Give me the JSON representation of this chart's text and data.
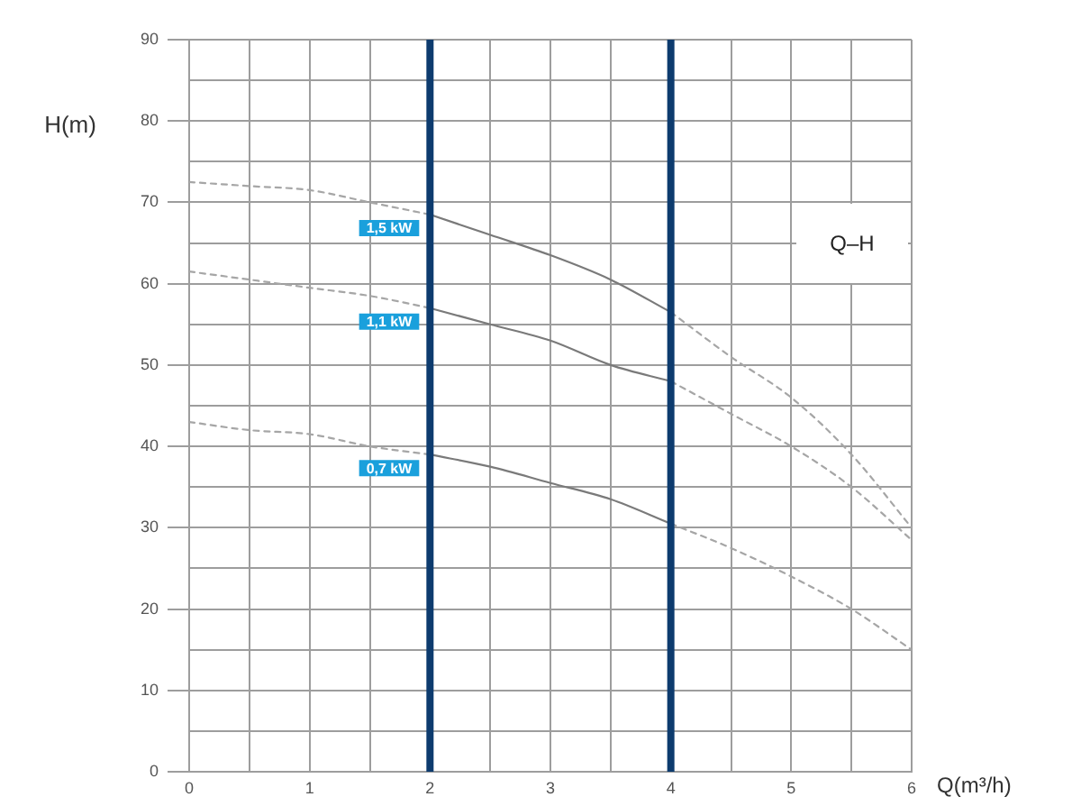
{
  "chart_data": {
    "type": "line",
    "xlabel": "Q(m³/h)",
    "ylabel": "H(m)",
    "annotations": [
      "Q–H"
    ],
    "x": [
      0,
      0.5,
      1,
      1.5,
      2,
      2.5,
      3,
      3.5,
      4,
      4.5,
      5,
      5.5,
      6
    ],
    "series": [
      {
        "color": "#a6a6a6",
        "line_style": "dashed",
        "values": [
          72.5,
          72,
          71.5,
          70,
          68.5,
          null,
          null,
          null,
          56.5,
          51,
          46,
          39,
          30
        ]
      },
      {
        "name": "1,5 kW",
        "color": "#7a7a7a",
        "line_style": "solid",
        "values": [
          null,
          null,
          null,
          null,
          68.5,
          66,
          63.5,
          60.5,
          56.5,
          null,
          null,
          null,
          null
        ]
      },
      {
        "color": "#a6a6a6",
        "line_style": "dashed",
        "values": [
          61.5,
          60.5,
          59.5,
          58.5,
          57,
          null,
          null,
          null,
          48,
          44,
          40,
          35,
          28.5
        ]
      },
      {
        "name": "1,1 kW",
        "color": "#7a7a7a",
        "line_style": "solid",
        "values": [
          null,
          null,
          null,
          null,
          57,
          55,
          53,
          50,
          48,
          null,
          null,
          null,
          null
        ]
      },
      {
        "color": "#a6a6a6",
        "line_style": "dashed",
        "values": [
          43,
          42,
          41.5,
          40,
          39,
          null,
          null,
          null,
          30.5,
          27.5,
          24,
          20,
          15
        ]
      },
      {
        "name": "0,7 kW",
        "color": "#7a7a7a",
        "line_style": "solid",
        "values": [
          null,
          null,
          null,
          null,
          39,
          37.5,
          35.5,
          33.5,
          30.5,
          null,
          null,
          null,
          null
        ]
      }
    ],
    "xlim": [
      0,
      6
    ],
    "ylim": [
      0,
      90
    ],
    "xticks": [
      0,
      {
        "value": 0.5,
        "label": null
      },
      1,
      {
        "value": 1.5,
        "label": null
      },
      2,
      {
        "value": 2.5,
        "label": null
      },
      3,
      {
        "value": 3.5,
        "label": null
      },
      4,
      {
        "value": 4.5,
        "label": null
      },
      5,
      {
        "value": 5.5,
        "label": null
      },
      6
    ],
    "yticks": [
      0,
      {
        "value": 5,
        "label": null
      },
      10,
      {
        "value": 15,
        "label": null
      },
      20,
      {
        "value": 25,
        "label": null
      },
      30,
      {
        "value": 35,
        "label": null
      },
      40,
      {
        "value": 45,
        "label": null
      },
      50,
      {
        "value": 55,
        "label": null
      },
      60,
      {
        "value": 65,
        "label": null
      },
      70,
      {
        "value": 75,
        "label": null
      },
      80,
      {
        "value": 85,
        "label": null
      },
      90
    ],
    "ref_lines": [
      {
        "axis": "x",
        "value": 2,
        "color": "#0d3b6e"
      },
      {
        "axis": "x",
        "value": 4,
        "color": "#0d3b6e"
      }
    ],
    "grid": true,
    "marker": "none"
  }
}
